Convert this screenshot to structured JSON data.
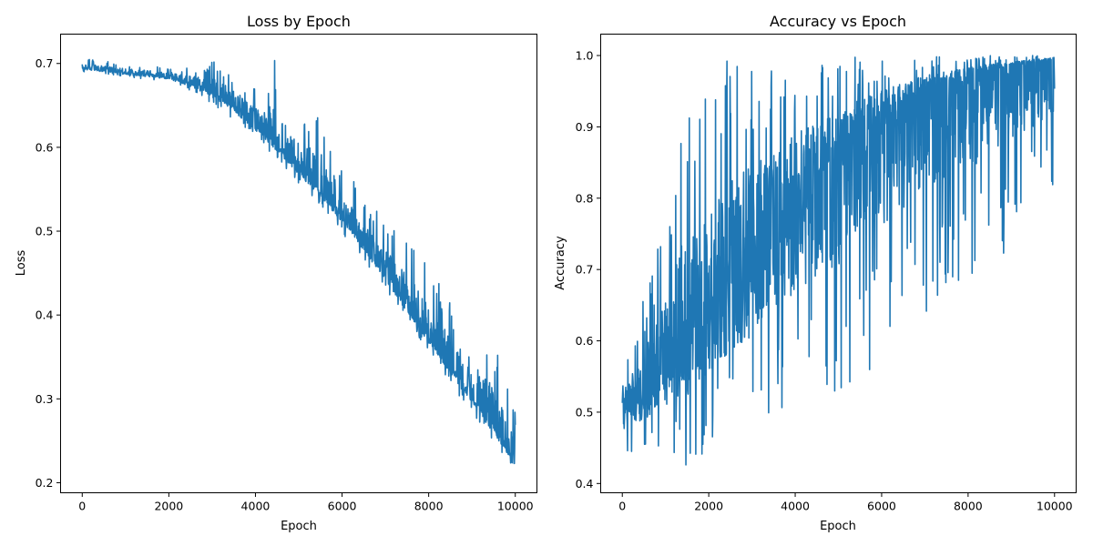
{
  "chart_data": [
    {
      "type": "line",
      "title": "Loss by Epoch",
      "xlabel": "Epoch",
      "ylabel": "Loss",
      "xlim": [
        -500,
        10500
      ],
      "ylim": [
        0.188,
        0.735
      ],
      "xticks": [
        0,
        2000,
        4000,
        6000,
        8000,
        10000
      ],
      "yticks": [
        0.2,
        0.3,
        0.4,
        0.5,
        0.6,
        0.7
      ],
      "xtick_labels": [
        "0",
        "2000",
        "4000",
        "6000",
        "8000",
        "10000"
      ],
      "ytick_labels": [
        "0.2",
        "0.3",
        "0.4",
        "0.5",
        "0.6",
        "0.7"
      ],
      "grid": false,
      "legend": "none",
      "color": "#1f77b4",
      "series": [
        {
          "name": "",
          "x": [
            0,
            500,
            1000,
            1500,
            2000,
            2500,
            3000,
            3500,
            4000,
            4500,
            5000,
            5500,
            6000,
            6500,
            7000,
            7500,
            8000,
            8500,
            9000,
            9500,
            10000
          ],
          "y": [
            0.695,
            0.692,
            0.689,
            0.687,
            0.684,
            0.676,
            0.666,
            0.65,
            0.628,
            0.603,
            0.576,
            0.549,
            0.519,
            0.486,
            0.45,
            0.413,
            0.376,
            0.34,
            0.304,
            0.268,
            0.225
          ],
          "upper": [
            0.707,
            0.703,
            0.7,
            0.698,
            0.697,
            0.696,
            0.704,
            0.69,
            0.672,
            0.711,
            0.64,
            0.654,
            0.588,
            0.535,
            0.517,
            0.49,
            0.462,
            0.415,
            0.404,
            0.368,
            0.285
          ],
          "lower": [
            0.69,
            0.688,
            0.684,
            0.681,
            0.677,
            0.667,
            0.652,
            0.633,
            0.61,
            0.585,
            0.557,
            0.528,
            0.498,
            0.466,
            0.43,
            0.393,
            0.356,
            0.318,
            0.282,
            0.248,
            0.215
          ]
        }
      ]
    },
    {
      "type": "line",
      "title": "Accuracy vs Epoch",
      "xlabel": "Epoch",
      "ylabel": "Accuracy",
      "xlim": [
        -500,
        10500
      ],
      "ylim": [
        0.387,
        1.03
      ],
      "xticks": [
        0,
        2000,
        4000,
        6000,
        8000,
        10000
      ],
      "yticks": [
        0.4,
        0.5,
        0.6,
        0.7,
        0.8,
        0.9,
        1.0
      ],
      "xtick_labels": [
        "0",
        "2000",
        "4000",
        "6000",
        "8000",
        "10000"
      ],
      "ytick_labels": [
        "0.4",
        "0.5",
        "0.6",
        "0.7",
        "0.8",
        "0.9",
        "1.0"
      ],
      "grid": false,
      "legend": "none",
      "color": "#1f77b4",
      "series": [
        {
          "name": "",
          "x": [
            0,
            500,
            1000,
            1500,
            2000,
            2500,
            3000,
            3500,
            4000,
            4500,
            5000,
            5500,
            6000,
            6500,
            7000,
            7500,
            8000,
            8500,
            9000,
            9500,
            10000
          ],
          "y": [
            0.51,
            0.53,
            0.56,
            0.6,
            0.64,
            0.68,
            0.72,
            0.76,
            0.8,
            0.83,
            0.86,
            0.89,
            0.91,
            0.93,
            0.95,
            0.96,
            0.97,
            0.98,
            0.985,
            0.99,
            0.995
          ],
          "upper": [
            0.55,
            0.66,
            0.77,
            0.96,
            0.97,
            1.0,
            1.0,
            0.99,
            1.0,
            1.0,
            1.0,
            1.0,
            1.0,
            1.0,
            1.0,
            1.0,
            1.0,
            1.0,
            1.0,
            1.0,
            1.0
          ],
          "lower": [
            0.43,
            0.44,
            0.45,
            0.42,
            0.45,
            0.47,
            0.46,
            0.5,
            0.5,
            0.51,
            0.52,
            0.54,
            0.58,
            0.6,
            0.64,
            0.66,
            0.69,
            0.7,
            0.73,
            0.79,
            0.81
          ]
        }
      ]
    }
  ]
}
